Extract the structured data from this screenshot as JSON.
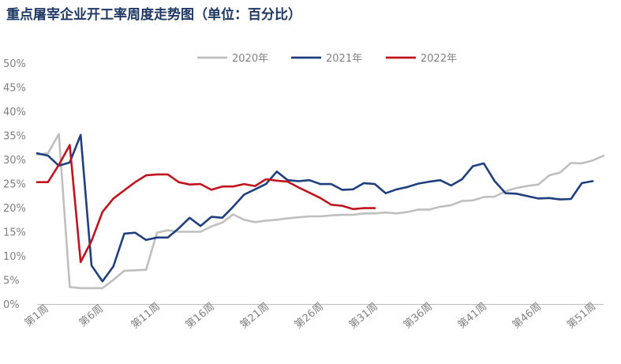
{
  "chart_data": {
    "type": "line",
    "title": "重点屠宰企业开工率周度走势图（单位：百分比）",
    "xlabel": "",
    "ylabel": "",
    "ylim": [
      0,
      50
    ],
    "y_ticks": [
      "0%",
      "5%",
      "10%",
      "15%",
      "20%",
      "25%",
      "30%",
      "35%",
      "40%",
      "45%",
      "50%"
    ],
    "x_tick_labels": [
      "第1周",
      "第6周",
      "第11周",
      "第16周",
      "第21周",
      "第26周",
      "第31周",
      "第36周",
      "第41周",
      "第46周",
      "第51周"
    ],
    "x_tick_weeks": [
      1,
      6,
      11,
      16,
      21,
      26,
      31,
      36,
      41,
      46,
      51
    ],
    "x_range": [
      1,
      53
    ],
    "grid": false,
    "legend": "top-center",
    "series": [
      {
        "name": "2020年",
        "color": "#bfbfbf",
        "x": [
          1,
          2,
          3,
          4,
          5,
          6,
          7,
          8,
          9,
          10,
          11,
          12,
          13,
          14,
          15,
          16,
          17,
          18,
          19,
          20,
          21,
          22,
          23,
          24,
          25,
          26,
          27,
          28,
          29,
          30,
          31,
          32,
          33,
          34,
          35,
          36,
          37,
          38,
          39,
          40,
          41,
          42,
          43,
          44,
          45,
          46,
          47,
          48,
          49,
          50,
          51,
          52,
          53
        ],
        "values": [
          31.0,
          31.3,
          35.3,
          3.5,
          3.3,
          3.3,
          3.3,
          5.0,
          6.9,
          7.0,
          7.1,
          14.8,
          15.3,
          15.0,
          15.0,
          15.0,
          16.1,
          16.9,
          18.6,
          17.5,
          17.0,
          17.3,
          17.5,
          17.8,
          18.0,
          18.2,
          18.2,
          18.4,
          18.5,
          18.5,
          18.8,
          18.8,
          19.0,
          18.8,
          19.1,
          19.6,
          19.6,
          20.2,
          20.5,
          21.4,
          21.5,
          22.2,
          22.3,
          23.4,
          24.1,
          24.5,
          24.8,
          26.7,
          27.3,
          29.3,
          29.2,
          29.8,
          30.8
        ]
      },
      {
        "name": "2021年",
        "color": "#1f3f7f",
        "x": [
          1,
          2,
          3,
          4,
          5,
          6,
          7,
          8,
          9,
          10,
          11,
          12,
          13,
          14,
          15,
          16,
          17,
          18,
          19,
          20,
          21,
          22,
          23,
          24,
          25,
          26,
          27,
          28,
          29,
          30,
          31,
          32,
          33,
          34,
          35,
          36,
          37,
          38,
          39,
          40,
          41,
          42,
          43,
          44,
          45,
          46,
          47,
          48,
          49,
          50,
          51,
          52
        ],
        "values": [
          31.3,
          30.8,
          28.7,
          29.4,
          35.1,
          8.0,
          4.7,
          7.8,
          14.6,
          14.8,
          13.3,
          13.8,
          13.8,
          15.7,
          17.9,
          16.2,
          18.1,
          17.9,
          20.2,
          22.7,
          23.8,
          24.9,
          27.5,
          25.7,
          25.5,
          25.7,
          24.9,
          24.9,
          23.7,
          23.8,
          25.1,
          24.9,
          23.0,
          23.8,
          24.3,
          25.0,
          25.4,
          25.7,
          24.6,
          25.9,
          28.6,
          29.2,
          25.5,
          23.0,
          22.9,
          22.4,
          21.9,
          22.0,
          21.7,
          21.8,
          25.1,
          25.5
        ]
      },
      {
        "name": "2022年",
        "color": "#c0141e",
        "x": [
          1,
          2,
          3,
          4,
          5,
          6,
          7,
          8,
          9,
          10,
          11,
          12,
          13,
          14,
          15,
          16,
          17,
          18,
          19,
          20,
          21,
          22,
          23,
          24,
          25,
          26,
          27,
          28,
          29,
          30,
          31,
          32
        ],
        "values": [
          25.3,
          25.3,
          28.9,
          33.0,
          8.7,
          13.1,
          19.1,
          21.9,
          23.6,
          25.3,
          26.7,
          26.9,
          26.9,
          25.3,
          24.8,
          24.9,
          23.7,
          24.4,
          24.4,
          24.9,
          24.5,
          25.9,
          25.6,
          25.4,
          24.2,
          23.1,
          22.0,
          20.6,
          20.4,
          19.7,
          19.9,
          19.9
        ]
      }
    ]
  }
}
